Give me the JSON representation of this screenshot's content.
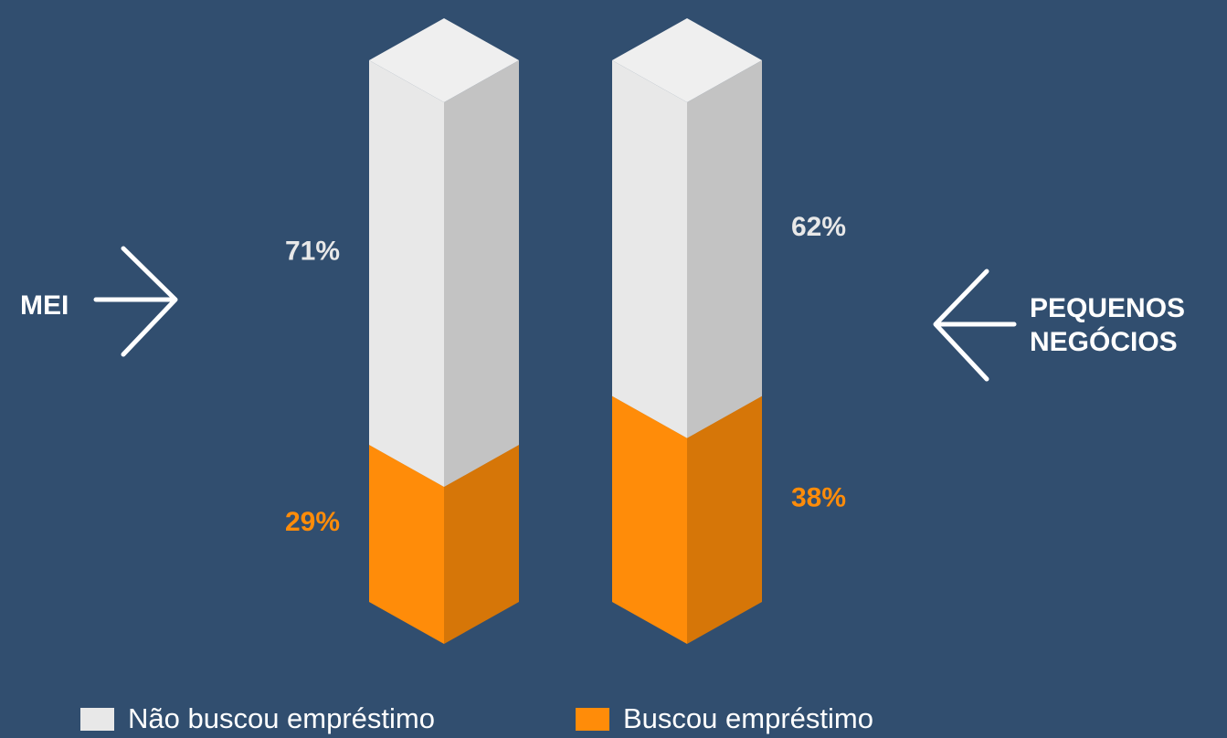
{
  "chart_data": {
    "type": "bar",
    "stacked": true,
    "categories": [
      "MEI",
      "PEQUENOS\nNEGÓCIOS"
    ],
    "series": [
      {
        "name": "Buscou empréstimo",
        "color": "#ff8c09",
        "values": [
          29,
          38
        ],
        "value_labels": [
          "29%",
          "38%"
        ]
      },
      {
        "name": "Não buscou empréstimo",
        "color": "#e8e8e8",
        "values": [
          71,
          62
        ],
        "value_labels": [
          "71%",
          "62%"
        ]
      }
    ],
    "ylim": [
      0,
      100
    ]
  }
}
